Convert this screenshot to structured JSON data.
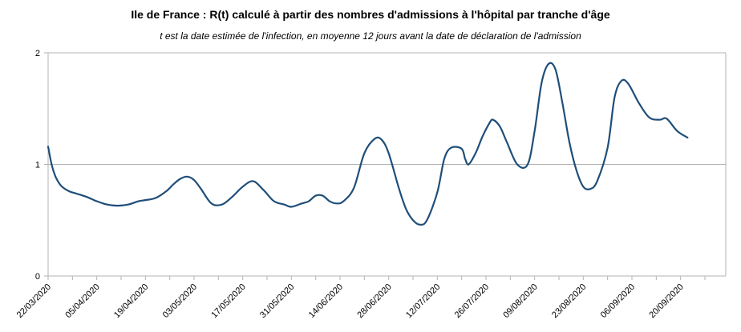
{
  "chart_data": {
    "type": "line",
    "title": "Ile de France : R(t) calculé à partir des nombres d'admissions à l'hôpital par tranche d'âge",
    "subtitle": "t est la date estimée de l'infection, en moyenne 12 jours avant la date de déclaration de l'admission",
    "xlabel": "",
    "ylabel": "",
    "ylim": [
      0,
      2
    ],
    "yticks": [
      "0",
      "1",
      "2"
    ],
    "x_tick_labels": [
      "22/03/2020",
      "05/04/2020",
      "19/04/2020",
      "03/05/2020",
      "17/05/2020",
      "31/05/2020",
      "14/06/2020",
      "28/06/2020",
      "12/07/2020",
      "26/07/2020",
      "09/08/2020",
      "23/08/2020",
      "06/09/2020",
      "20/09/2020"
    ],
    "grid": "horizontal major gridlines",
    "legend": "none",
    "line_color": "#1f4e79",
    "series": [
      {
        "x": [
          "2020-03-22",
          "2020-03-23",
          "2020-03-24",
          "2020-03-25",
          "2020-03-26",
          "2020-03-28",
          "2020-03-30",
          "2020-04-02",
          "2020-04-05",
          "2020-04-08",
          "2020-04-11",
          "2020-04-14",
          "2020-04-17",
          "2020-04-19",
          "2020-04-22",
          "2020-04-25",
          "2020-04-27",
          "2020-04-29",
          "2020-05-01",
          "2020-05-03",
          "2020-05-05",
          "2020-05-08",
          "2020-05-11",
          "2020-05-14",
          "2020-05-17",
          "2020-05-20",
          "2020-05-23",
          "2020-05-26",
          "2020-05-29",
          "2020-05-31",
          "2020-06-03",
          "2020-06-05",
          "2020-06-07",
          "2020-06-09",
          "2020-06-11",
          "2020-06-13",
          "2020-06-15",
          "2020-06-18",
          "2020-06-21",
          "2020-06-24",
          "2020-06-26",
          "2020-06-28",
          "2020-07-01",
          "2020-07-03",
          "2020-07-05",
          "2020-07-07",
          "2020-07-09",
          "2020-07-12",
          "2020-07-14",
          "2020-07-16",
          "2020-07-19",
          "2020-07-20",
          "2020-07-21",
          "2020-07-23",
          "2020-07-25",
          "2020-07-27",
          "2020-07-28",
          "2020-07-30",
          "2020-08-01",
          "2020-08-04",
          "2020-08-07",
          "2020-08-09",
          "2020-08-11",
          "2020-08-13",
          "2020-08-15",
          "2020-08-17",
          "2020-08-19",
          "2020-08-21",
          "2020-08-23",
          "2020-08-25",
          "2020-08-27",
          "2020-08-30",
          "2020-09-01",
          "2020-09-03",
          "2020-09-05",
          "2020-09-08",
          "2020-09-11",
          "2020-09-14",
          "2020-09-16",
          "2020-09-19",
          "2020-09-22"
        ],
        "y": [
          1.16,
          1.0,
          0.9,
          0.84,
          0.8,
          0.76,
          0.74,
          0.71,
          0.67,
          0.64,
          0.63,
          0.64,
          0.67,
          0.68,
          0.7,
          0.76,
          0.82,
          0.87,
          0.89,
          0.86,
          0.78,
          0.65,
          0.64,
          0.71,
          0.8,
          0.85,
          0.77,
          0.67,
          0.64,
          0.62,
          0.65,
          0.67,
          0.72,
          0.72,
          0.67,
          0.65,
          0.67,
          0.79,
          1.1,
          1.23,
          1.22,
          1.1,
          0.78,
          0.6,
          0.5,
          0.46,
          0.5,
          0.75,
          1.05,
          1.15,
          1.14,
          1.05,
          1.0,
          1.1,
          1.25,
          1.37,
          1.4,
          1.34,
          1.2,
          1.0,
          1.0,
          1.3,
          1.73,
          1.9,
          1.85,
          1.55,
          1.2,
          0.95,
          0.8,
          0.78,
          0.85,
          1.15,
          1.6,
          1.75,
          1.72,
          1.55,
          1.42,
          1.4,
          1.41,
          1.3,
          1.24
        ]
      }
    ]
  }
}
